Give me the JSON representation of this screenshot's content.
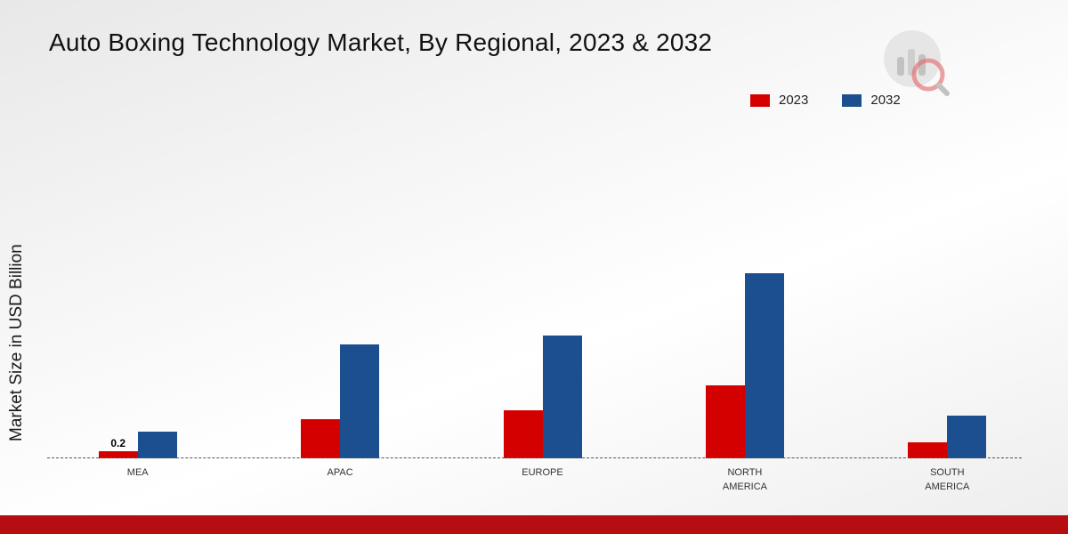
{
  "title": "Auto Boxing Technology Market, By Regional, 2023 & 2032",
  "ylabel": "Market Size in USD Billion",
  "legend": [
    {
      "label": "2023",
      "color": "#d40000"
    },
    {
      "label": "2032",
      "color": "#1b4f8f"
    }
  ],
  "chart_data": {
    "type": "bar",
    "title": "Auto Boxing Technology Market, By Regional, 2023 & 2032",
    "xlabel": "",
    "ylabel": "Market Size in USD Billion",
    "categories": [
      "MEA",
      "APAC",
      "EUROPE",
      "NORTH\nAMERICA",
      "SOUTH\nAMERICA"
    ],
    "series": [
      {
        "name": "2023",
        "color": "#d40000",
        "values": [
          0.2,
          1.1,
          1.35,
          2.05,
          0.45
        ],
        "labels": [
          "0.2",
          "",
          "",
          "",
          ""
        ]
      },
      {
        "name": "2032",
        "color": "#1b4f8f",
        "values": [
          0.75,
          3.2,
          3.45,
          5.2,
          1.2
        ],
        "labels": [
          "",
          "",
          "",
          "",
          ""
        ]
      }
    ],
    "ylim": [
      0,
      6
    ],
    "grid": false,
    "legend_position": "top-right",
    "baseline_style": "dashed",
    "pixels_per_unit": 40
  },
  "footer": {
    "bar_color": "#b50d11"
  }
}
